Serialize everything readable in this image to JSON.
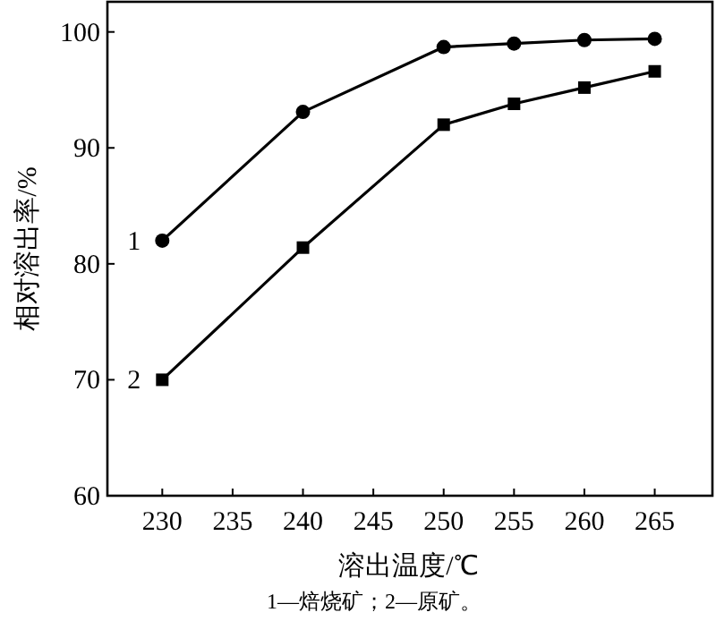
{
  "chart_data": {
    "type": "line",
    "xlabel": "溶出温度/℃",
    "ylabel": "相对溶出率/%",
    "annotations": [
      "1—焙烧矿；2—原矿。"
    ],
    "x": [
      230,
      240,
      250,
      255,
      260,
      265
    ],
    "xlim": [
      226.1,
      269.1
    ],
    "xticks": [
      230,
      235,
      240,
      245,
      250,
      255,
      260,
      265
    ],
    "ylim": [
      60,
      102.6
    ],
    "yticks": [
      60,
      70,
      80,
      90,
      100
    ],
    "series": [
      {
        "name": "1",
        "color": "#000000",
        "marker": "circle",
        "values": [
          82,
          93.1,
          98.7,
          99.0,
          99.3,
          99.4
        ]
      },
      {
        "name": "2",
        "color": "#000000",
        "marker": "square",
        "values": [
          70.0,
          81.4,
          92.0,
          93.8,
          95.2,
          96.6
        ]
      }
    ]
  }
}
